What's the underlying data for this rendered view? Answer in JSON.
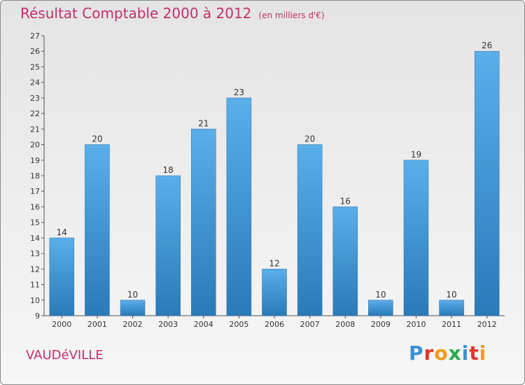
{
  "header": {
    "title": "Résultat Comptable 2000 à 2012",
    "subtitle": "(en milliers d'€)"
  },
  "footer": {
    "town": "VAUDéVILLE",
    "logo_letters": [
      "P",
      "r",
      "o",
      "x",
      "i",
      "t",
      "i"
    ],
    "logo_colors": [
      "#3b8fd6",
      "#e0362c",
      "#f29a1a",
      "#2ea84a",
      "#3b8fd6",
      "#e0362c",
      "#f29a1a"
    ]
  },
  "colors": {
    "bar_top": "#5aaeea",
    "bar_bottom": "#2a7ab8",
    "title": "#c0306a"
  },
  "chart_data": {
    "type": "bar",
    "title": "Résultat Comptable 2000 à 2012",
    "subtitle": "(en milliers d'€)",
    "xlabel": "",
    "ylabel": "",
    "categories": [
      "2000",
      "2001",
      "2002",
      "2003",
      "2004",
      "2005",
      "2006",
      "2007",
      "2008",
      "2009",
      "2010",
      "2011",
      "2012"
    ],
    "values": [
      14,
      20,
      10,
      18,
      21,
      23,
      12,
      20,
      16,
      10,
      19,
      10,
      26
    ],
    "ylim": [
      9,
      27
    ],
    "yticks": [
      9,
      10,
      11,
      12,
      13,
      14,
      15,
      16,
      17,
      18,
      19,
      20,
      21,
      22,
      23,
      24,
      25,
      26,
      27
    ],
    "grid": false,
    "legend": "none"
  }
}
